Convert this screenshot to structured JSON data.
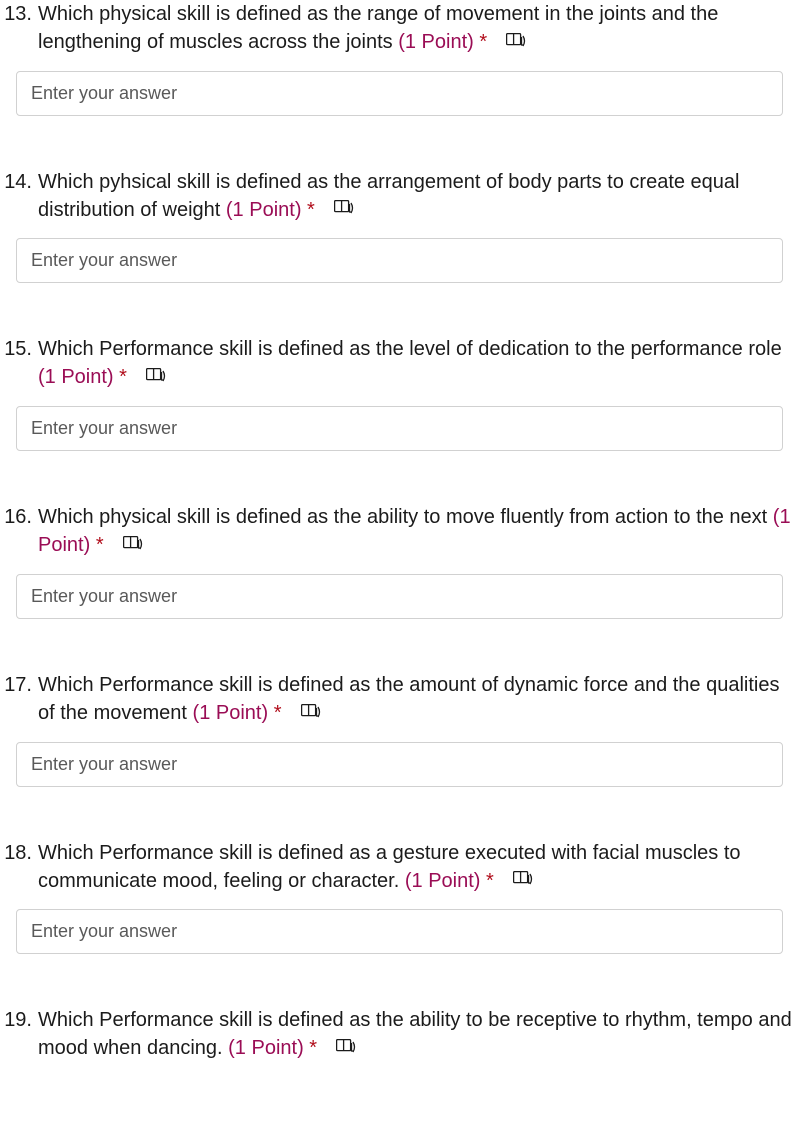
{
  "form": {
    "points_label": "(1 Point)",
    "required_marker": "*",
    "input_placeholder": "Enter your answer",
    "immersive_icon_name": "immersive-reader-icon",
    "colors": {
      "text": "#1b1b1b",
      "points": "#9a0d55",
      "star": "#b10e1c",
      "input_border": "#d1d1d1",
      "placeholder": "#595959",
      "background": "#ffffff"
    },
    "questions": [
      {
        "number": "13.",
        "text": "Which physical skill is defined as the range of movement in the joints and the lengthening of muscles across the joints",
        "show_input": true
      },
      {
        "number": "14.",
        "text": "Which pyhsical skill is defined as the arrangement of body parts to create equal distribution of weight",
        "show_input": true
      },
      {
        "number": "15.",
        "text": "Which Performance skill is defined as the level of dedication to the performance role",
        "show_input": true
      },
      {
        "number": "16.",
        "text": "Which physical skill is defined as the ability to move fluently from action to the next",
        "show_input": true
      },
      {
        "number": "17.",
        "text": "Which Performance skill is defined as the amount of dynamic force and the qualities of the movement",
        "show_input": true
      },
      {
        "number": "18.",
        "text": "Which Performance skill is defined as a gesture executed with facial muscles to communicate mood, feeling or character.",
        "show_input": true
      },
      {
        "number": "19.",
        "text": "Which Performance skill is defined as the ability to be receptive to rhythm, tempo and mood when dancing.",
        "show_input": false
      }
    ]
  }
}
